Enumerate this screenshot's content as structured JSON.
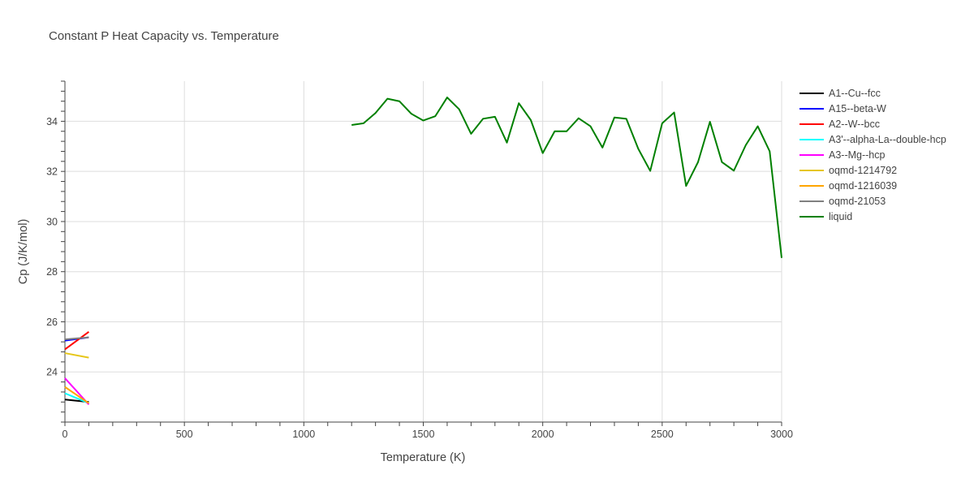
{
  "chart_data": {
    "type": "line",
    "title": "Constant P Heat Capacity vs. Temperature",
    "xlabel": "Temperature (K)",
    "ylabel": "Cp (J/K/mol)",
    "xlim": [
      0,
      3000
    ],
    "ylim": [
      22.0,
      35.6
    ],
    "x_ticks": [
      0,
      500,
      1000,
      1500,
      2000,
      2500,
      3000
    ],
    "y_ticks": [
      24,
      26,
      28,
      30,
      32,
      34
    ],
    "grid": true,
    "legend_position": "right",
    "series": [
      {
        "name": "A1--Cu--fcc",
        "color": "#000000",
        "x": [
          0,
          100
        ],
        "y": [
          22.9,
          22.8
        ]
      },
      {
        "name": "A15--beta-W",
        "color": "#0000ff",
        "x": [
          0,
          100
        ],
        "y": [
          25.25,
          25.38
        ]
      },
      {
        "name": "A2--W--bcc",
        "color": "#ff0000",
        "x": [
          0,
          100
        ],
        "y": [
          24.9,
          25.6
        ]
      },
      {
        "name": "A3'--alpha-La--double-hcp",
        "color": "#00ffff",
        "x": [
          0,
          100
        ],
        "y": [
          23.15,
          22.75
        ]
      },
      {
        "name": "A3--Mg--hcp",
        "color": "#ff00ff",
        "x": [
          0,
          100
        ],
        "y": [
          23.75,
          22.7
        ]
      },
      {
        "name": "oqmd-1214792",
        "color": "#e6c619",
        "x": [
          0,
          100
        ],
        "y": [
          24.75,
          24.57
        ]
      },
      {
        "name": "oqmd-1216039",
        "color": "#ffa500",
        "x": [
          0,
          100
        ],
        "y": [
          23.4,
          22.75
        ]
      },
      {
        "name": "oqmd-21053",
        "color": "#808080",
        "x": [
          0,
          100
        ],
        "y": [
          25.3,
          25.38
        ]
      },
      {
        "name": "liquid",
        "color": "#008000",
        "x": [
          1200,
          1250,
          1300,
          1350,
          1400,
          1450,
          1500,
          1550,
          1600,
          1650,
          1700,
          1750,
          1800,
          1850,
          1900,
          1950,
          2000,
          2050,
          2100,
          2150,
          2200,
          2250,
          2300,
          2350,
          2400,
          2450,
          2500,
          2550,
          2600,
          2650,
          2700,
          2750,
          2800,
          2850,
          2900,
          2950,
          3000
        ],
        "y": [
          33.85,
          33.92,
          34.33,
          34.9,
          34.8,
          34.3,
          34.03,
          34.2,
          34.95,
          34.48,
          33.5,
          34.1,
          34.18,
          33.15,
          34.72,
          34.05,
          32.73,
          33.6,
          33.6,
          34.12,
          33.8,
          32.95,
          34.15,
          34.1,
          32.9,
          32.02,
          33.92,
          34.35,
          31.42,
          32.37,
          33.98,
          32.37,
          32.03,
          33.05,
          33.8,
          32.8,
          28.55
        ]
      }
    ]
  }
}
